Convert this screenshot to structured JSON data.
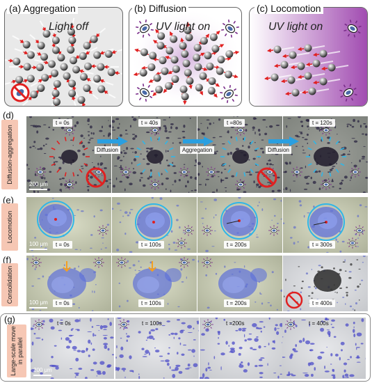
{
  "panels_top": [
    {
      "label": "(a) Aggregation",
      "condition": "Light off"
    },
    {
      "label": "(b) Diffusion",
      "condition": "UV light on"
    },
    {
      "label": "(c) Locomotion",
      "condition": "UV light on"
    }
  ],
  "rows": [
    {
      "letter": "(d)",
      "side": "Diffusion-aggregation",
      "scale": "200 μm",
      "times": [
        "t = 0s",
        "t = 40s",
        "t =80s",
        "t = 120s"
      ],
      "transitions": [
        "Diffusion",
        "Aggregation",
        "Diffusion"
      ]
    },
    {
      "letter": "(e)",
      "side": "Locomotion",
      "scale": "100 μm",
      "times": [
        "t = 0s",
        "t = 100s",
        "t = 200s",
        "t = 300s"
      ]
    },
    {
      "letter": "(f)",
      "side": "Consolidation",
      "scale": "100 μm",
      "times": [
        "t = 0s",
        "t = 100s",
        "t = 200s",
        "t = 400s"
      ]
    },
    {
      "letter": "(g)",
      "side_line1": "Large-scale move",
      "side_line2": "in parallel",
      "scale": "200 μm",
      "times": [
        "t = 0s",
        "t = 100s",
        "t =200s",
        "t = 400s"
      ]
    }
  ],
  "colors": {
    "red": "#e02020",
    "cyan": "#2fb6e8",
    "violet": "#7a2c8a",
    "salmon": "#f6c7b4",
    "arrow_blue": "#2a9fe0"
  }
}
